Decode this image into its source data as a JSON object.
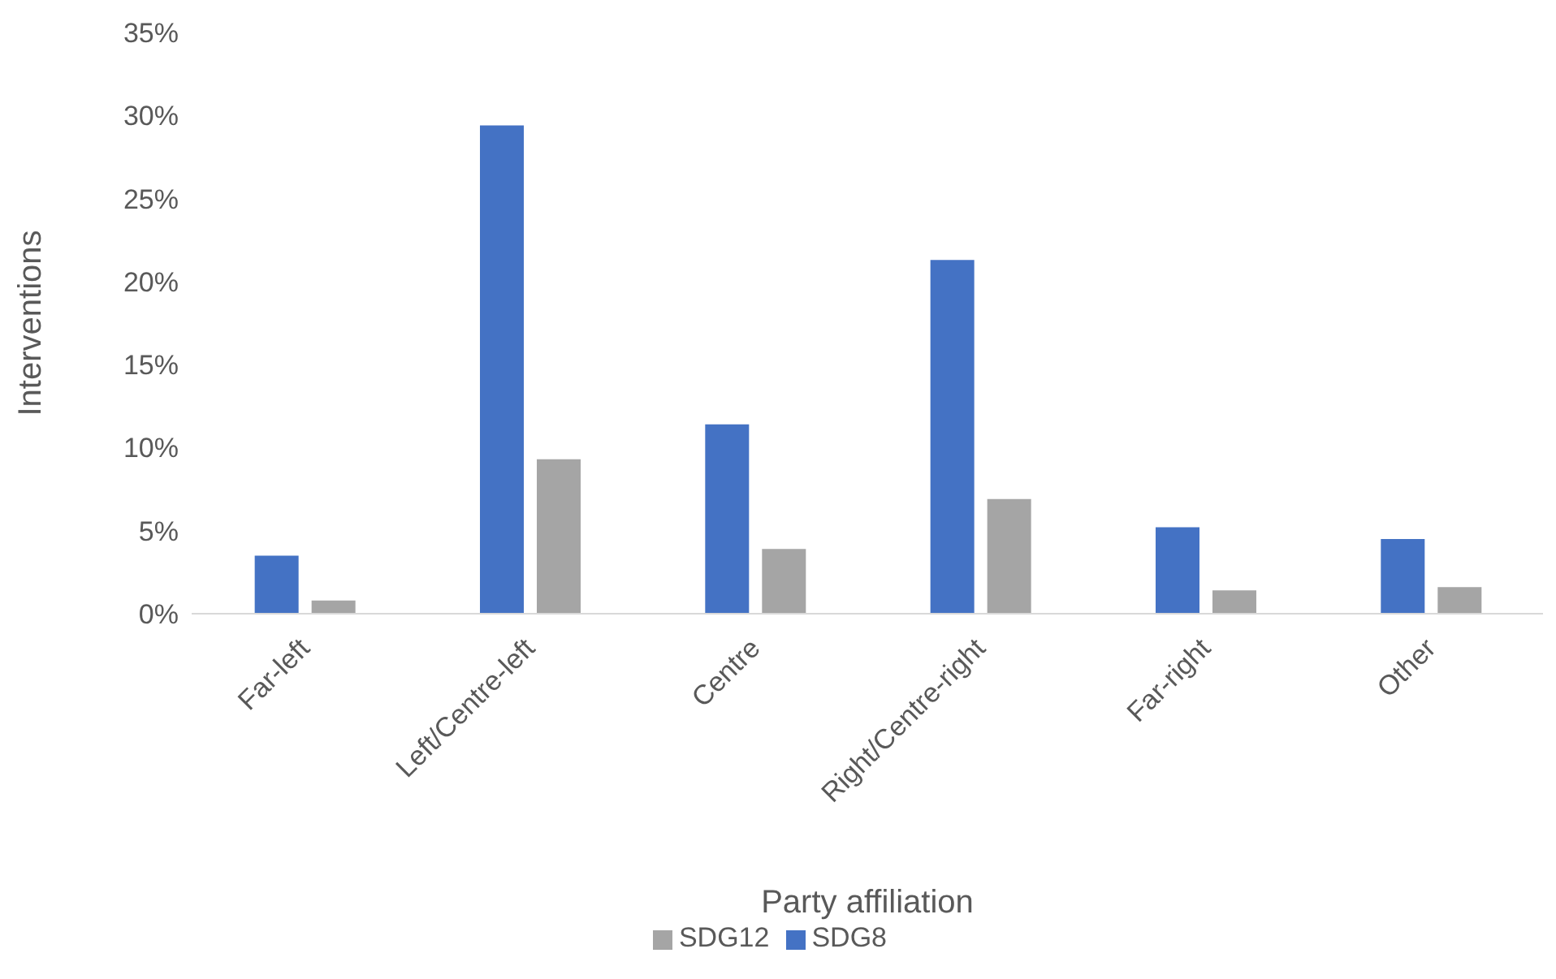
{
  "chart_data": {
    "type": "bar",
    "xlabel": "Party affiliation",
    "ylabel": "Interventions",
    "categories": [
      "Far-left",
      "Left/Centre-left",
      "Centre",
      "Right/Centre-right",
      "Far-right",
      "Other"
    ],
    "series": [
      {
        "name": "SDG8",
        "color": "#4472c4",
        "values": [
          3.5,
          29.4,
          11.4,
          21.3,
          5.2,
          4.5
        ]
      },
      {
        "name": "SDG12",
        "color": "#a5a5a5",
        "values": [
          0.8,
          9.3,
          3.9,
          6.9,
          1.4,
          1.6
        ]
      }
    ],
    "ylim": [
      0,
      35
    ],
    "yticks": [
      {
        "value": 0,
        "label": "0%"
      },
      {
        "value": 5,
        "label": "5%"
      },
      {
        "value": 10,
        "label": "10%"
      },
      {
        "value": 15,
        "label": "15%"
      },
      {
        "value": 20,
        "label": "20%"
      },
      {
        "value": 25,
        "label": "25%"
      },
      {
        "value": 30,
        "label": "30%"
      },
      {
        "value": 35,
        "label": "35%"
      }
    ],
    "grid": false,
    "legend": "bottom"
  }
}
